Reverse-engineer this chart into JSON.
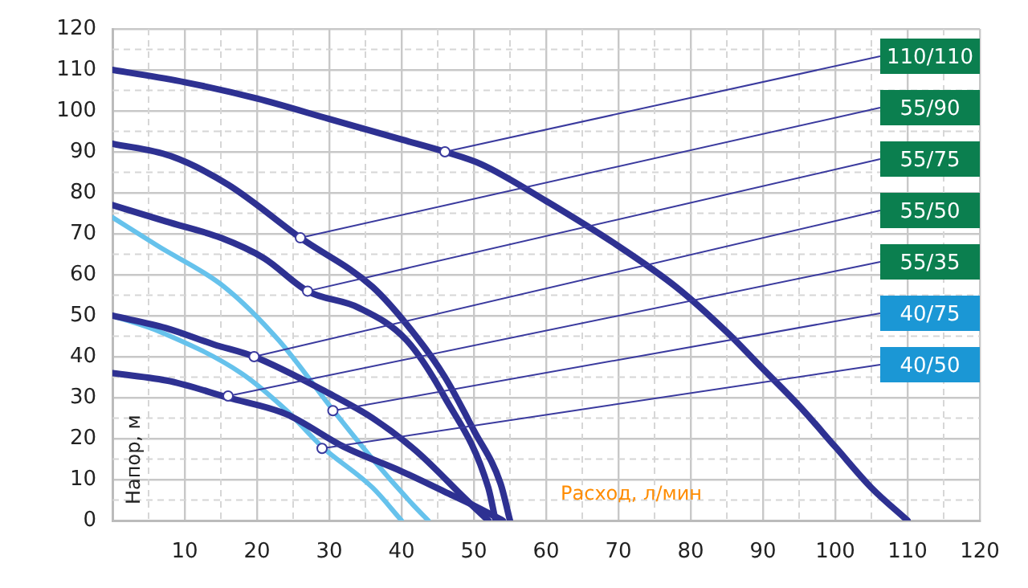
{
  "chart_data": {
    "type": "line",
    "xlabel": "Расход, л/мин",
    "ylabel": "Напор, м",
    "xlim": [
      0,
      120
    ],
    "ylim": [
      0,
      120
    ],
    "xticks": [
      {
        "value": 0,
        "label": null
      },
      10,
      20,
      30,
      40,
      50,
      60,
      70,
      80,
      90,
      100,
      110,
      120
    ],
    "yticks": [
      0,
      10,
      20,
      30,
      40,
      50,
      60,
      70,
      80,
      90,
      100,
      110,
      120
    ],
    "grid": true,
    "legend": false,
    "marker": "none",
    "series": [
      {
        "color": "#2e3192",
        "x": [
          0,
          10,
          20,
          30,
          40,
          46,
          51,
          60,
          70,
          78,
          85,
          90,
          95,
          100,
          105,
          110
        ],
        "values": [
          110,
          107,
          103,
          98,
          93,
          90,
          87,
          78,
          67,
          57,
          46,
          37,
          28,
          18,
          8,
          0
        ]
      },
      {
        "color": "#2e3192",
        "x": [
          0,
          8,
          16,
          26,
          36,
          42,
          46,
          50,
          53.7,
          55
        ],
        "values": [
          92,
          89,
          82,
          69,
          57,
          45,
          35,
          22,
          9,
          0
        ]
      },
      {
        "color": "#2e3192",
        "x": [
          0,
          7.4,
          15,
          21,
          27,
          34,
          40.7,
          46,
          52,
          53
        ],
        "values": [
          77,
          73,
          69,
          64,
          56,
          52,
          44,
          30,
          8,
          0
        ]
      },
      {
        "color": "#2e3192",
        "x": [
          0,
          7.4,
          14,
          19.6,
          30,
          36,
          42,
          49,
          52
        ],
        "values": [
          50,
          47,
          43,
          40,
          31,
          25,
          17,
          5,
          0
        ]
      },
      {
        "color": "#2e3192",
        "x": [
          0,
          8,
          16,
          24,
          32,
          40,
          46,
          49.6,
          54
        ],
        "values": [
          36,
          34,
          30,
          26,
          18,
          12,
          7,
          4,
          0
        ]
      },
      {
        "color": "#66c2ec",
        "x": [
          0,
          6.3,
          15.5,
          23,
          30.5,
          36,
          41.5,
          43.7
        ],
        "values": [
          74,
          67,
          57,
          44,
          27,
          15,
          4,
          0
        ]
      },
      {
        "color": "#66c2ec",
        "x": [
          0,
          6.7,
          17.8,
          24,
          29,
          36,
          40
        ],
        "values": [
          50,
          46,
          36,
          27,
          18,
          8,
          0
        ]
      }
    ],
    "annotations": [
      {
        "text": "110/110",
        "x": 46,
        "y": 90
      },
      {
        "text": "55/90",
        "x": 26,
        "y": 69
      },
      {
        "text": "55/75",
        "x": 27,
        "y": 56
      },
      {
        "text": "55/50",
        "x": 19.6,
        "y": 40
      },
      {
        "text": "55/35",
        "x": 16,
        "y": 30.4
      },
      {
        "text": "40/75",
        "x": 30.5,
        "y": 26.8
      },
      {
        "text": "40/50",
        "x": 29,
        "y": 17.6
      }
    ]
  }
}
